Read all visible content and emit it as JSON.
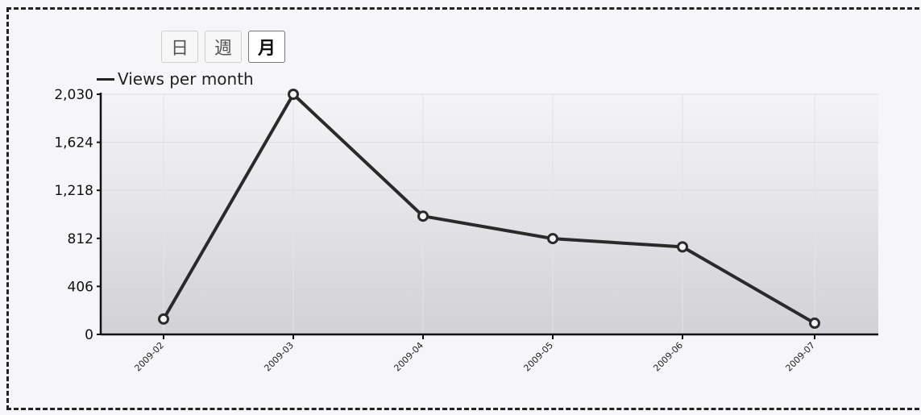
{
  "tabs": [
    {
      "label": "日",
      "active": false
    },
    {
      "label": "週",
      "active": false
    },
    {
      "label": "月",
      "active": true
    }
  ],
  "chart_data": {
    "type": "line",
    "x": [
      "2009-02",
      "2009-03",
      "2009-04",
      "2009-05",
      "2009-06",
      "2009-07"
    ],
    "series": [
      {
        "name": "Views per month",
        "values": [
          130,
          2030,
          1000,
          810,
          740,
          95
        ],
        "color": "#2a2a2a"
      }
    ],
    "yticks": [
      0,
      406,
      812,
      1218,
      1624,
      2030
    ],
    "ytick_labels": [
      "0",
      "406",
      "812",
      "1,218",
      "1,624",
      "2,030"
    ],
    "ylim": [
      0,
      2030
    ],
    "grid": true,
    "legend": "top-left"
  }
}
